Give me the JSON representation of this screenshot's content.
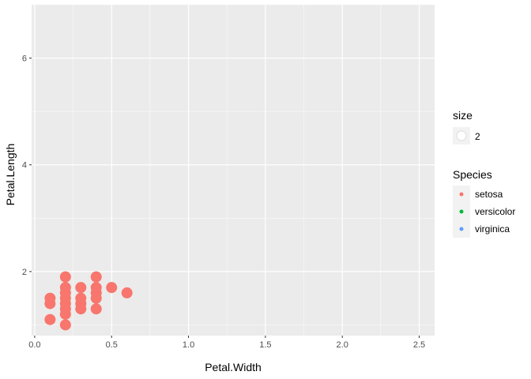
{
  "chart_data": {
    "type": "scatter",
    "xlabel": "Petal.Width",
    "ylabel": "Petal.Length",
    "xlim": [
      -0.02,
      2.6
    ],
    "ylim": [
      0.8,
      7.0
    ],
    "x_ticks": [
      0.0,
      0.5,
      1.0,
      1.5,
      2.0,
      2.5
    ],
    "x_tick_labels": [
      "0.0",
      "0.5",
      "1.0",
      "1.5",
      "2.0",
      "2.5"
    ],
    "y_ticks": [
      2,
      4,
      6
    ],
    "y_tick_labels": [
      "2",
      "4",
      "6"
    ],
    "grid": true,
    "background": "#ebebeb",
    "legend_position": "right",
    "size_legend": {
      "title": "size",
      "label": "2"
    },
    "species_legend": {
      "title": "Species",
      "entries": [
        {
          "label": "setosa",
          "color": "#f8766d"
        },
        {
          "label": "versicolor",
          "color": "#00ba38"
        },
        {
          "label": "virginica",
          "color": "#619cff"
        }
      ]
    },
    "series": [
      {
        "name": "setosa",
        "color": "#f8766d",
        "points": [
          {
            "x": 0.1,
            "y": 1.1
          },
          {
            "x": 0.1,
            "y": 1.4
          },
          {
            "x": 0.1,
            "y": 1.5
          },
          {
            "x": 0.2,
            "y": 1.0
          },
          {
            "x": 0.2,
            "y": 1.2
          },
          {
            "x": 0.2,
            "y": 1.3
          },
          {
            "x": 0.2,
            "y": 1.4
          },
          {
            "x": 0.2,
            "y": 1.5
          },
          {
            "x": 0.2,
            "y": 1.6
          },
          {
            "x": 0.2,
            "y": 1.7
          },
          {
            "x": 0.2,
            "y": 1.9
          },
          {
            "x": 0.3,
            "y": 1.3
          },
          {
            "x": 0.3,
            "y": 1.4
          },
          {
            "x": 0.3,
            "y": 1.5
          },
          {
            "x": 0.3,
            "y": 1.7
          },
          {
            "x": 0.4,
            "y": 1.3
          },
          {
            "x": 0.4,
            "y": 1.5
          },
          {
            "x": 0.4,
            "y": 1.6
          },
          {
            "x": 0.4,
            "y": 1.7
          },
          {
            "x": 0.4,
            "y": 1.9
          },
          {
            "x": 0.5,
            "y": 1.7
          },
          {
            "x": 0.6,
            "y": 1.6
          }
        ]
      },
      {
        "name": "versicolor",
        "color": "#00ba38",
        "points": []
      },
      {
        "name": "virginica",
        "color": "#619cff",
        "points": []
      }
    ]
  }
}
